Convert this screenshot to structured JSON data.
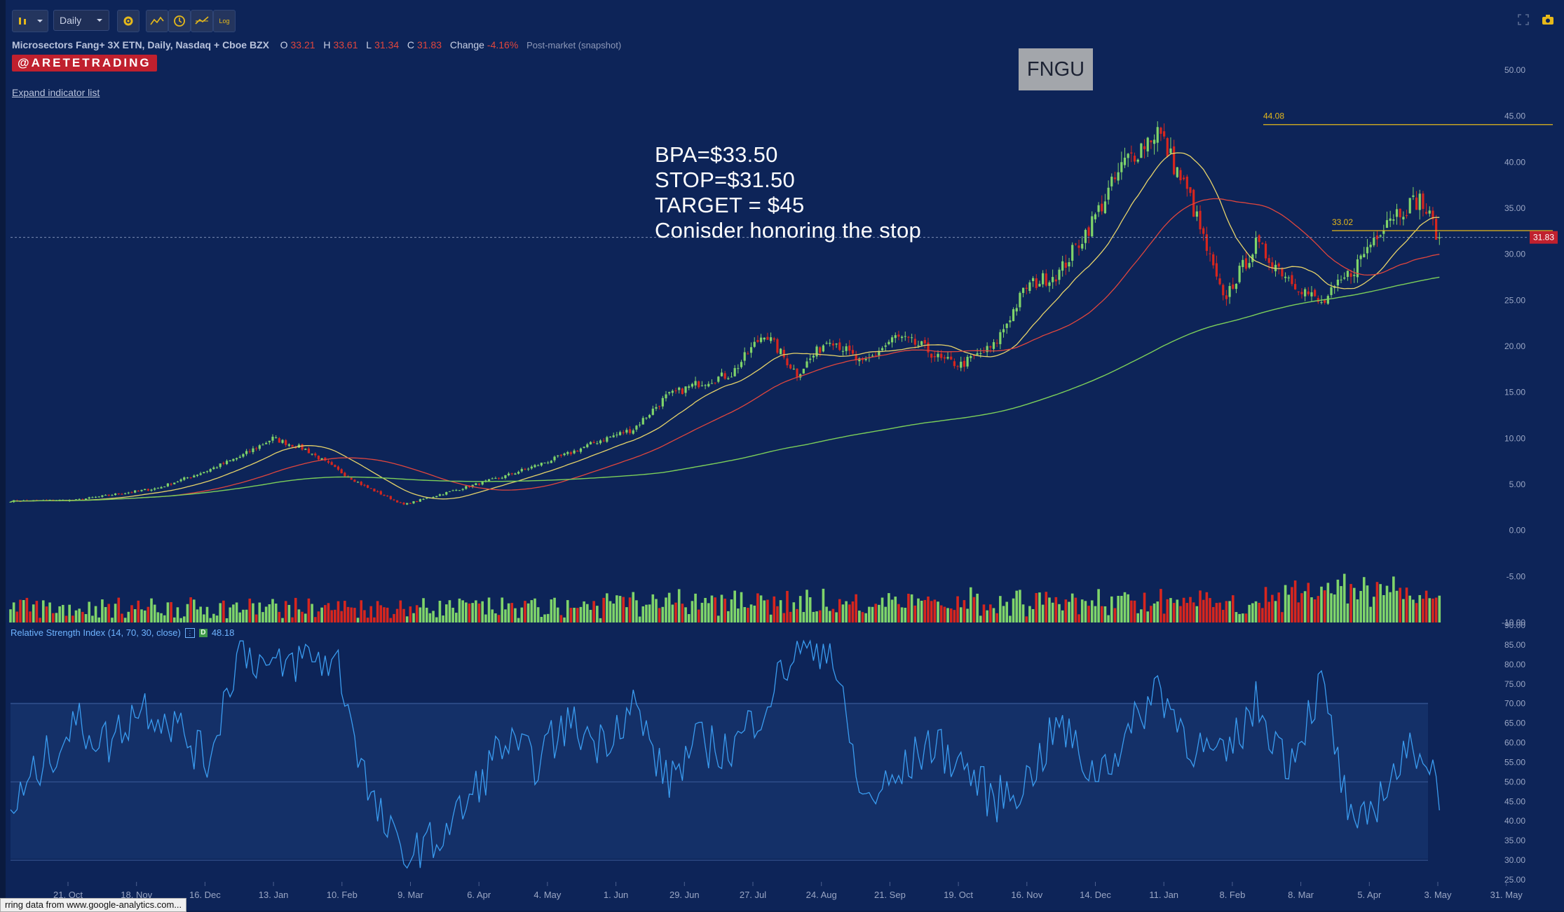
{
  "toolbar": {
    "timeframe": "Daily",
    "log_label": "Log"
  },
  "legend": {
    "name": "Microsectors Fang+ 3X ETN, Daily, Nasdaq + Cboe BZX",
    "o_label": "O",
    "o_value": "33.21",
    "h_label": "H",
    "h_value": "33.61",
    "l_label": "L",
    "l_value": "31.34",
    "c_label": "C",
    "c_value": "31.83",
    "change_label": "Change",
    "change_value": "-4.16%",
    "session": "Post-market (snapshot)"
  },
  "brand": "@ARETETRADING",
  "expand_label": "Expand indicator list",
  "ticker": "FNGU",
  "note_lines": [
    "BPA=$33.50",
    "STOP=$31.50",
    "TARGET = $45",
    "Conisder honoring the stop"
  ],
  "rsi_legend": {
    "text": "Relative Strength Index (14, 70, 30, close)",
    "value": "48.18",
    "d": "D"
  },
  "status_bar": "rring data from www.google-analytics.com...",
  "colors": {
    "up": "#7fd46a",
    "down": "#d7261e",
    "ma_short": "#e6d36a",
    "ma_mid": "#e0463d",
    "ma_long": "#7ccf5a",
    "rsi": "#3a9cf0",
    "hline": "#e6b91a",
    "background": "#0d2458"
  },
  "chart_data": {
    "type": "candlestick",
    "title": "Microsectors Fang+ 3X ETN, Daily, Nasdaq + Cboe BZX",
    "price_axis": {
      "ticks": [
        50.0,
        45.0,
        40.0,
        35.0,
        30.0,
        25.0,
        20.0,
        15.0,
        10.0,
        5.0,
        0.0,
        -5.0,
        -10.0
      ],
      "range": [
        -10,
        50
      ]
    },
    "date_ticks": [
      "21. Oct",
      "18. Nov",
      "16. Dec",
      "13. Jan",
      "10. Feb",
      "9. Mar",
      "6. Apr",
      "4. May",
      "1. Jun",
      "29. Jun",
      "27. Jul",
      "24. Aug",
      "21. Sep",
      "19. Oct",
      "16. Nov",
      "14. Dec",
      "11. Jan",
      "8. Feb",
      "8. Mar",
      "5. Apr",
      "3. May",
      "31. May"
    ],
    "price_anchors": {
      "x": [
        0,
        20,
        45,
        60,
        70,
        80,
        90,
        100,
        108,
        120,
        140,
        150,
        160,
        170,
        180,
        190,
        200,
        210,
        220,
        230,
        240,
        250,
        260,
        270,
        278,
        284,
        290,
        300,
        310,
        320,
        330,
        340,
        350,
        360,
        370,
        380,
        390,
        400,
        410,
        420,
        430,
        436
      ],
      "close": [
        3.2,
        3.3,
        4.6,
        6.5,
        8.0,
        10.0,
        8.8,
        6.5,
        4.8,
        2.8,
        4.8,
        5.8,
        7.0,
        8.3,
        9.8,
        11.0,
        14.5,
        16.0,
        17.0,
        21.5,
        17.0,
        21.0,
        18.0,
        21.0,
        20.0,
        18.5,
        18.0,
        20.0,
        26.5,
        28.0,
        33.5,
        40.0,
        43.5,
        36.0,
        25.0,
        31.0,
        27.5,
        24.5,
        28.5,
        34.0,
        36.0,
        31.83
      ]
    },
    "horizontal_levels": [
      {
        "value": 44.08,
        "label": "44.08"
      },
      {
        "value": 33.02,
        "label": "33.02"
      }
    ],
    "last_price": "31.83",
    "rsi": {
      "range": [
        25,
        90
      ],
      "ticks": [
        90.0,
        85.0,
        80.0,
        75.0,
        70.0,
        65.0,
        60.0,
        55.0,
        50.0,
        45.0,
        40.0,
        35.0,
        30.0,
        25.0
      ],
      "overbought": 70,
      "oversold": 30,
      "midline": 50,
      "anchors": {
        "x": [
          0,
          10,
          20,
          30,
          40,
          50,
          60,
          70,
          80,
          90,
          100,
          110,
          120,
          130,
          140,
          150,
          160,
          170,
          180,
          190,
          200,
          210,
          220,
          230,
          240,
          250,
          260,
          270,
          280,
          290,
          300,
          310,
          320,
          330,
          340,
          350,
          360,
          370,
          380,
          390,
          400,
          410,
          420,
          430,
          436
        ],
        "v": [
          42,
          55,
          65,
          60,
          70,
          65,
          55,
          85,
          78,
          82,
          80,
          45,
          30,
          35,
          45,
          60,
          55,
          65,
          60,
          70,
          50,
          60,
          58,
          70,
          84,
          85,
          45,
          50,
          60,
          55,
          45,
          50,
          65,
          52,
          60,
          75,
          60,
          55,
          70,
          55,
          75,
          35,
          50,
          60,
          48
        ]
      }
    },
    "volume_range": [
      0,
      100
    ]
  }
}
